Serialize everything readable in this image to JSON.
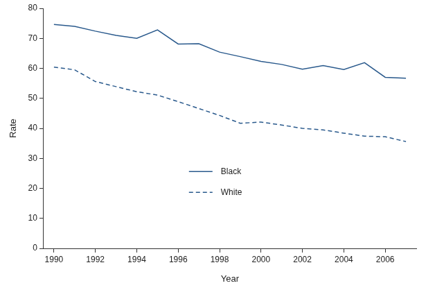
{
  "chart_data": {
    "type": "line",
    "x_label": "Year",
    "y_label": "Rate",
    "x": [
      1990,
      1991,
      1992,
      1993,
      1994,
      1995,
      1996,
      1997,
      1998,
      1999,
      2000,
      2001,
      2002,
      2003,
      2004,
      2005,
      2006,
      2007
    ],
    "series": [
      {
        "name": "Black",
        "color": "#29598c",
        "line_style": "solid",
        "values": [
          74.6,
          74.0,
          72.4,
          71.0,
          70.0,
          72.8,
          68.1,
          68.2,
          65.4,
          63.9,
          62.3,
          61.3,
          59.7,
          60.9,
          59.6,
          61.9,
          57.0,
          56.7
        ]
      },
      {
        "name": "White",
        "color": "#29598c",
        "line_style": "dashed",
        "values": [
          60.4,
          59.5,
          55.6,
          53.9,
          52.2,
          51.1,
          48.9,
          46.6,
          44.3,
          41.7,
          42.1,
          41.1,
          40.0,
          39.5,
          38.4,
          37.4,
          37.2,
          35.6
        ]
      }
    ],
    "xlim": [
      1989.5,
      2007.5
    ],
    "xticks": [
      1990,
      1992,
      1994,
      1996,
      1998,
      2000,
      2002,
      2004,
      2006
    ],
    "ylim": [
      0,
      80
    ],
    "yticks": [
      0,
      10,
      20,
      30,
      40,
      50,
      60,
      70,
      80
    ],
    "grid": false,
    "legend": "center"
  }
}
